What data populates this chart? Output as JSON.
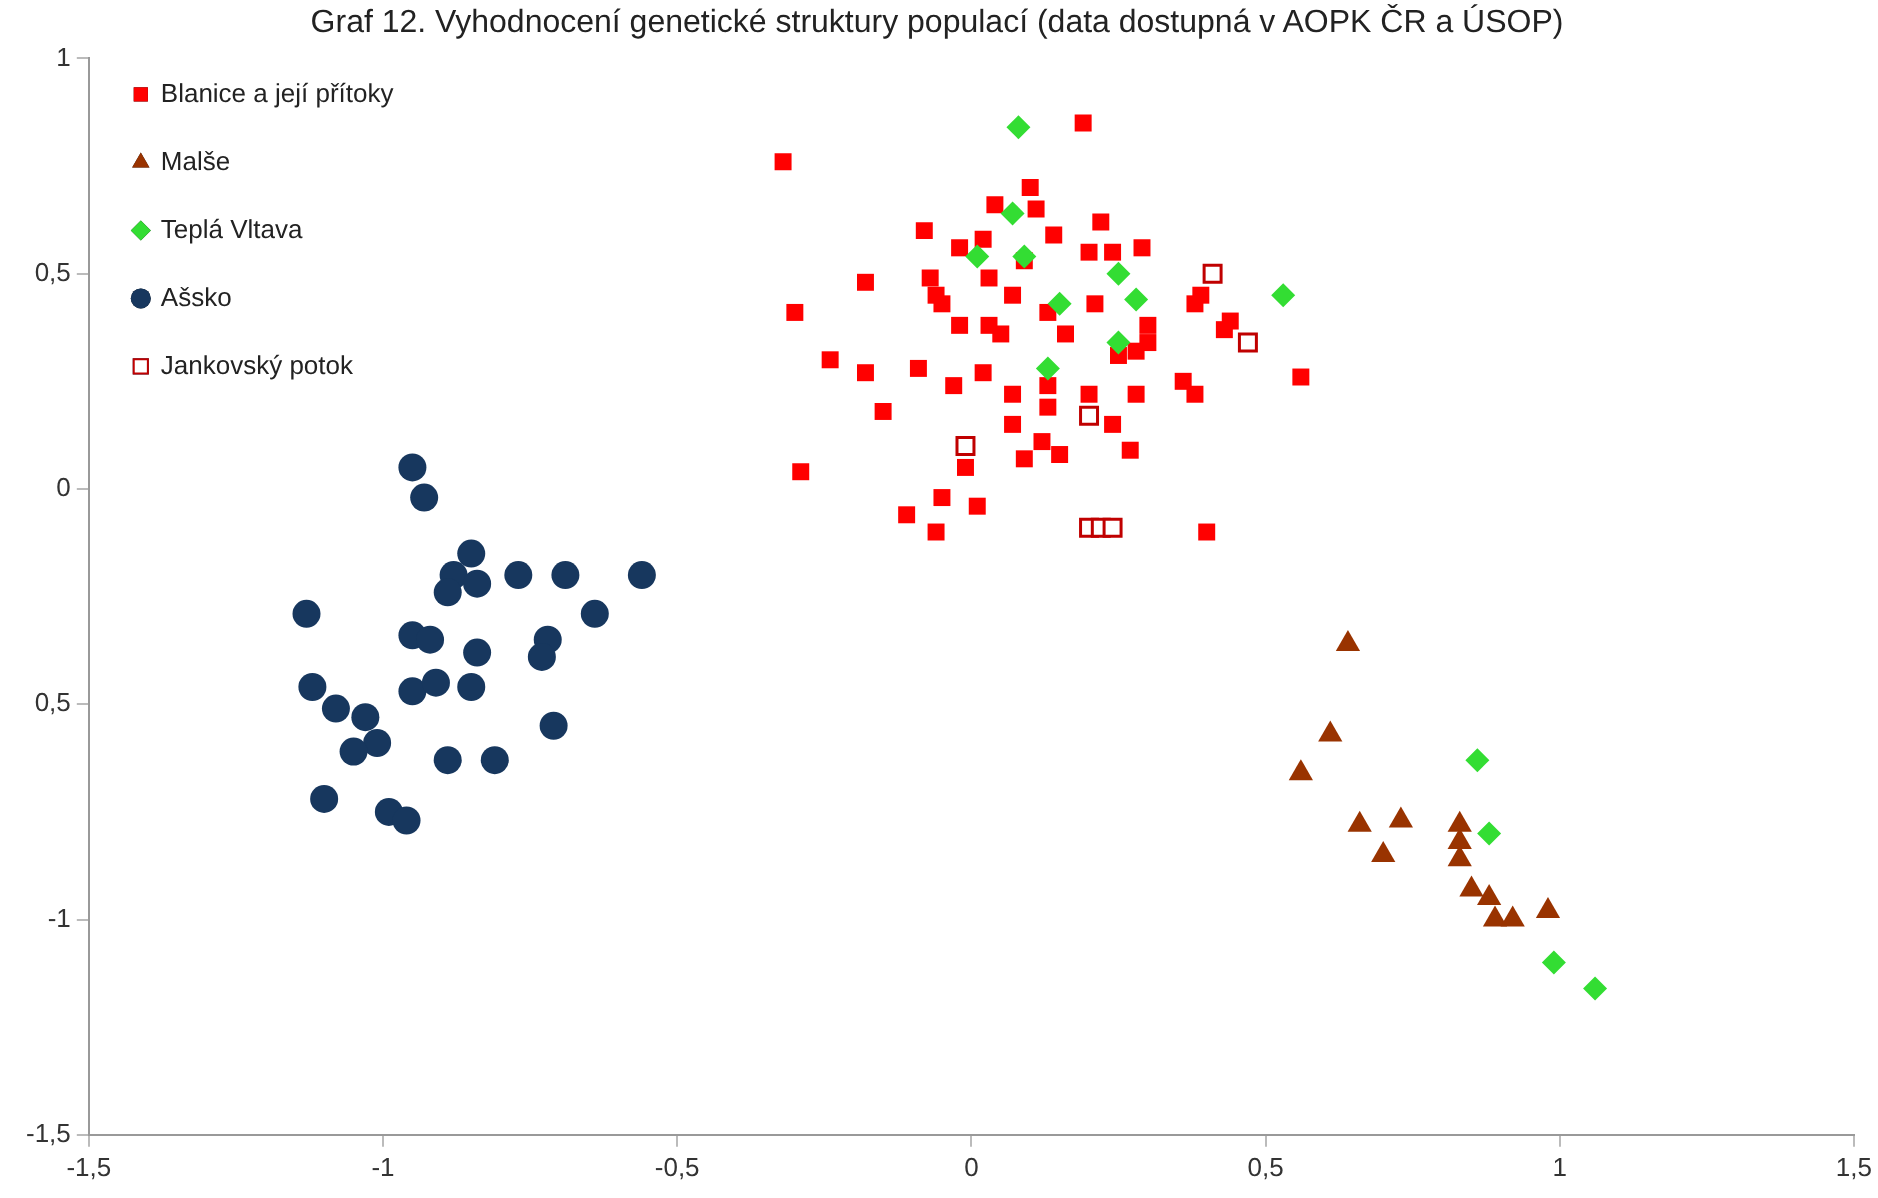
{
  "chart_data": {
    "type": "scatter",
    "title": "Graf 12. Vyhodnocení genetické struktury populací (data dostupná v AOPK ČR a ÚSOP)",
    "xlim": [
      -1.5,
      1.5
    ],
    "xticks": [
      {
        "value": -1.5,
        "label": "-1,5"
      },
      -1,
      {
        "value": -0.5,
        "label": "-0,5"
      },
      0,
      {
        "value": 0.5,
        "label": "0,5"
      },
      1,
      {
        "value": 1.5,
        "label": "1,5"
      }
    ],
    "ylim": [
      -1.5,
      1
    ],
    "yticks": [
      {
        "value": -1.5,
        "label": "-1,5"
      },
      {
        "value": -1,
        "label": "-1"
      },
      {
        "value": -0.5,
        "label": "0,5"
      },
      {
        "value": 0,
        "label": "0"
      },
      {
        "value": 0.5,
        "label": "0,5"
      },
      {
        "value": 1,
        "label": "1"
      }
    ],
    "grid": false,
    "legend": "top left",
    "series": [
      {
        "name": "Blanice a její přítoky",
        "color": "#ff0000",
        "marker": "square",
        "x": [
          -0.32,
          0.19,
          -0.3,
          -0.18,
          -0.08,
          0.04,
          0.1,
          0.11,
          0.14,
          0.22,
          -0.02,
          0.02,
          0.09,
          0.2,
          0.24,
          0.29,
          -0.07,
          -0.06,
          -0.05,
          0.03,
          0.07,
          -0.02,
          0.03,
          0.05,
          0.13,
          0.16,
          0.21,
          0.3,
          0.3,
          0.28,
          0.25,
          0.39,
          0.38,
          0.44,
          0.43,
          0.56,
          -0.24,
          -0.18,
          -0.09,
          -0.03,
          0.02,
          0.07,
          0.13,
          0.2,
          0.28,
          0.36,
          0.38,
          -0.15,
          0.07,
          0.13,
          0.24,
          0.12,
          0.09,
          0.15,
          0.27,
          -0.29,
          -0.01,
          -0.05,
          0.01,
          -0.11,
          -0.06,
          0.4
        ],
        "values": [
          0.76,
          0.85,
          0.41,
          0.48,
          0.6,
          0.66,
          0.7,
          0.65,
          0.59,
          0.62,
          0.56,
          0.58,
          0.53,
          0.55,
          0.55,
          0.56,
          0.49,
          0.45,
          0.43,
          0.49,
          0.45,
          0.38,
          0.38,
          0.36,
          0.41,
          0.36,
          0.43,
          0.38,
          0.34,
          0.32,
          0.31,
          0.45,
          0.43,
          0.39,
          0.37,
          0.26,
          0.3,
          0.27,
          0.28,
          0.24,
          0.27,
          0.22,
          0.24,
          0.22,
          0.22,
          0.25,
          0.22,
          0.18,
          0.15,
          0.19,
          0.15,
          0.11,
          0.07,
          0.08,
          0.09,
          0.04,
          0.05,
          -0.02,
          -0.04,
          -0.06,
          -0.1,
          -0.1
        ]
      },
      {
        "name": "Malše",
        "color": "#993300",
        "marker": "triangle",
        "x": [
          0.64,
          0.61,
          0.56,
          0.66,
          0.73,
          0.7,
          0.83,
          0.83,
          0.83,
          0.85,
          0.88,
          0.89,
          0.92,
          0.98
        ],
        "values": [
          -0.36,
          -0.57,
          -0.66,
          -0.78,
          -0.77,
          -0.85,
          -0.78,
          -0.82,
          -0.86,
          -0.93,
          -0.95,
          -1.0,
          -1.0,
          -0.98
        ]
      },
      {
        "name": "Teplá Vltava",
        "color": "#33dd33",
        "marker": "diamond",
        "x": [
          0.08,
          0.07,
          0.01,
          0.09,
          0.25,
          0.28,
          0.15,
          0.53,
          0.25,
          0.13,
          0.86,
          0.88,
          0.99,
          1.06
        ],
        "values": [
          0.84,
          0.64,
          0.54,
          0.54,
          0.5,
          0.44,
          0.43,
          0.45,
          0.34,
          0.28,
          -0.63,
          -0.8,
          -1.1,
          -1.16
        ]
      },
      {
        "name": "Ašsko",
        "color": "#17375e",
        "marker": "circle",
        "x": [
          -0.95,
          -0.93,
          -0.85,
          -0.88,
          -0.84,
          -0.89,
          -0.77,
          -0.69,
          -0.56,
          -0.64,
          -1.13,
          -0.95,
          -0.92,
          -0.84,
          -0.72,
          -0.73,
          -1.12,
          -0.95,
          -0.91,
          -0.85,
          -1.08,
          -1.03,
          -0.71,
          -1.01,
          -1.05,
          -0.89,
          -0.81,
          -1.1,
          -0.99,
          -0.96
        ],
        "values": [
          0.05,
          -0.02,
          -0.15,
          -0.2,
          -0.22,
          -0.24,
          -0.2,
          -0.2,
          -0.2,
          -0.29,
          -0.29,
          -0.34,
          -0.35,
          -0.38,
          -0.35,
          -0.39,
          -0.46,
          -0.47,
          -0.45,
          -0.46,
          -0.51,
          -0.53,
          -0.55,
          -0.59,
          -0.61,
          -0.63,
          -0.63,
          -0.72,
          -0.75,
          -0.77
        ]
      },
      {
        "name": "Jankovský potok",
        "color": "#c00000",
        "marker": "square-open",
        "x": [
          0.41,
          0.47,
          -0.01,
          0.2,
          0.2,
          0.22,
          0.24
        ],
        "values": [
          0.5,
          0.34,
          0.1,
          0.17,
          -0.09,
          -0.09,
          -0.09
        ]
      }
    ]
  }
}
